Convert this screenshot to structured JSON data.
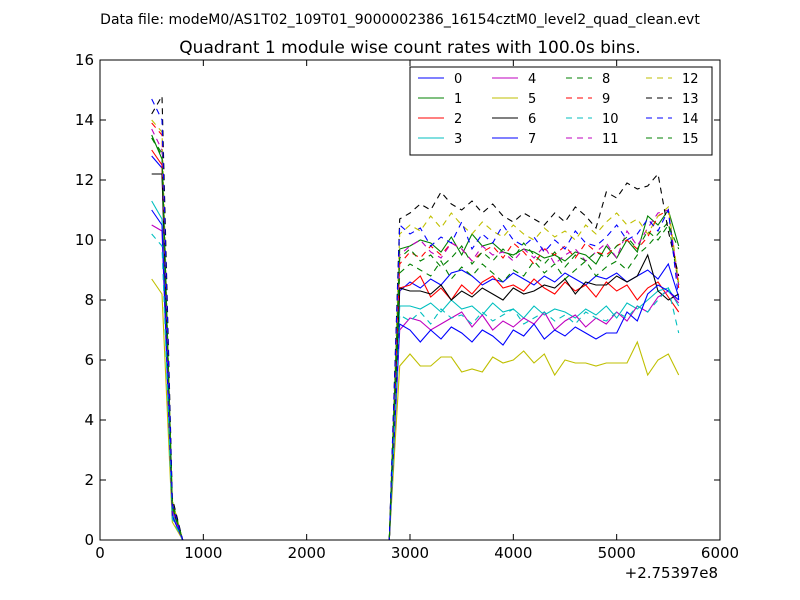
{
  "header": {
    "suptitle": "Data file: modeM0/AS1T02_109T01_9000002386_16154cztM0_level2_quad_clean.evt"
  },
  "chart_data": {
    "type": "line",
    "title": "Quadrant 1 module wise count rates with 100.0s bins.",
    "xlabel": "",
    "ylabel": "",
    "x_offset_label": "+2.75397e8",
    "xlim": [
      0,
      6000
    ],
    "ylim": [
      0,
      16
    ],
    "xticks": [
      0,
      1000,
      2000,
      3000,
      4000,
      5000,
      6000
    ],
    "yticks": [
      0,
      2,
      4,
      6,
      8,
      10,
      12,
      14,
      16
    ],
    "grid": false,
    "legend_position": "top-right",
    "legend_columns": 4,
    "gap_interval": [
      800,
      2800
    ],
    "series": [
      {
        "name": "0",
        "color": "#0000ff",
        "style": "solid",
        "head": [
          12.8,
          12.4,
          1.1,
          0
        ],
        "tail": [
          8.3,
          8.6,
          8.4,
          8.7,
          8.5,
          8.9,
          9.0,
          8.8,
          8.5,
          8.7,
          8.6,
          8.9,
          8.7,
          8.5,
          8.8,
          8.6,
          8.9,
          8.7,
          8.5,
          8.8,
          8.7,
          8.9,
          8.6,
          8.8,
          9.0,
          8.7,
          9.2,
          8.1
        ]
      },
      {
        "name": "1",
        "color": "#008000",
        "style": "solid",
        "head": [
          13.5,
          12.7,
          1.2,
          0
        ],
        "tail": [
          9.7,
          9.8,
          10.0,
          9.9,
          9.6,
          10.1,
          9.5,
          10.2,
          9.8,
          9.9,
          9.6,
          9.5,
          9.7,
          9.6,
          9.4,
          9.5,
          9.3,
          9.6,
          9.5,
          9.2,
          9.8,
          9.4,
          10.0,
          9.6,
          10.8,
          10.5,
          11.0,
          9.8
        ]
      },
      {
        "name": "2",
        "color": "#ff0000",
        "style": "solid",
        "head": [
          13.0,
          12.5,
          1.0,
          0
        ],
        "tail": [
          8.4,
          8.5,
          8.8,
          8.1,
          8.4,
          8.0,
          8.5,
          8.2,
          8.6,
          8.8,
          8.4,
          8.5,
          8.3,
          8.7,
          8.4,
          8.2,
          8.6,
          8.3,
          8.5,
          8.1,
          8.6,
          8.3,
          8.5,
          8.0,
          8.4,
          8.6,
          8.1,
          7.6
        ]
      },
      {
        "name": "3",
        "color": "#00bfbf",
        "style": "solid",
        "head": [
          11.3,
          10.7,
          0.9,
          0
        ],
        "tail": [
          7.8,
          7.8,
          7.7,
          7.9,
          7.6,
          8.0,
          7.7,
          7.8,
          7.5,
          7.9,
          7.6,
          7.7,
          7.4,
          7.8,
          7.5,
          7.7,
          7.6,
          7.4,
          7.7,
          7.5,
          7.8,
          7.4,
          7.9,
          7.7,
          8.0,
          8.3,
          8.4,
          7.8
        ]
      },
      {
        "name": "4",
        "color": "#bf00bf",
        "style": "solid",
        "head": [
          10.5,
          10.3,
          0.8,
          0
        ],
        "tail": [
          7.0,
          7.4,
          7.3,
          7.0,
          7.2,
          7.4,
          7.6,
          7.1,
          7.5,
          7.0,
          7.3,
          7.1,
          7.4,
          7.2,
          7.6,
          7.0,
          7.3,
          7.5,
          7.1,
          7.4,
          7.2,
          7.6,
          7.3,
          7.8,
          7.6,
          8.1,
          8.3,
          7.9
        ]
      },
      {
        "name": "5",
        "color": "#bfbf00",
        "style": "solid",
        "head": [
          8.7,
          8.2,
          0.6,
          0
        ],
        "tail": [
          5.8,
          6.2,
          5.8,
          5.8,
          6.1,
          6.1,
          5.6,
          5.7,
          5.6,
          6.1,
          5.9,
          6.0,
          6.3,
          5.9,
          6.2,
          5.5,
          6.0,
          5.9,
          5.9,
          5.8,
          5.9,
          5.9,
          5.9,
          6.6,
          5.5,
          6.0,
          6.2,
          5.5
        ]
      },
      {
        "name": "6",
        "color": "#000000",
        "style": "solid",
        "head": [
          12.2,
          12.2,
          1.1,
          0
        ],
        "tail": [
          8.4,
          8.3,
          8.3,
          8.2,
          8.5,
          8.0,
          8.3,
          8.1,
          8.4,
          8.2,
          8.0,
          8.4,
          8.2,
          8.3,
          8.5,
          8.4,
          8.7,
          8.2,
          8.6,
          8.5,
          8.5,
          8.8,
          8.6,
          8.8,
          9.5,
          8.3,
          8.0,
          8.2
        ]
      },
      {
        "name": "7",
        "color": "#0000ff",
        "style": "solid",
        "head": [
          11.0,
          10.5,
          0.8,
          0
        ],
        "tail": [
          7.2,
          7.0,
          6.6,
          7.0,
          6.7,
          7.1,
          6.9,
          6.6,
          7.0,
          6.8,
          6.5,
          7.0,
          6.8,
          7.2,
          6.7,
          7.0,
          6.8,
          7.1,
          6.9,
          6.7,
          6.9,
          6.9,
          7.6,
          7.3,
          8.2,
          8.5,
          8.3,
          8.0
        ]
      },
      {
        "name": "8",
        "color": "#008000",
        "style": "dashed",
        "head": [
          13.4,
          12.8,
          1.3,
          0
        ],
        "tail": [
          8.9,
          9.2,
          9.0,
          8.8,
          9.3,
          8.7,
          9.1,
          8.8,
          9.2,
          8.9,
          8.6,
          9.0,
          8.8,
          9.3,
          8.9,
          9.2,
          8.7,
          9.0,
          9.3,
          8.8,
          9.1,
          9.3,
          9.0,
          9.5,
          9.8,
          10.2,
          10.6,
          8.5
        ]
      },
      {
        "name": "9",
        "color": "#ff0000",
        "style": "dashed",
        "head": [
          13.9,
          13.5,
          1.2,
          0
        ],
        "tail": [
          9.2,
          9.6,
          9.4,
          9.8,
          9.5,
          9.9,
          9.7,
          9.3,
          9.6,
          9.8,
          9.4,
          9.9,
          9.6,
          9.2,
          9.7,
          9.5,
          9.8,
          9.4,
          9.9,
          9.6,
          9.5,
          9.8,
          10.0,
          9.7,
          10.1,
          10.8,
          11.0,
          8.4
        ]
      },
      {
        "name": "10",
        "color": "#00bfbf",
        "style": "dashed",
        "head": [
          10.2,
          9.8,
          0.7,
          0
        ],
        "tail": [
          7.5,
          7.3,
          7.6,
          7.2,
          7.7,
          7.4,
          7.5,
          7.2,
          7.6,
          7.3,
          7.5,
          7.7,
          7.2,
          7.4,
          7.6,
          7.3,
          7.5,
          7.2,
          7.6,
          7.4,
          7.3,
          7.6,
          7.4,
          7.8,
          7.6,
          8.0,
          8.4,
          6.9
        ]
      },
      {
        "name": "11",
        "color": "#bf00bf",
        "style": "dashed",
        "head": [
          13.7,
          13.0,
          1.0,
          0
        ],
        "tail": [
          9.5,
          9.8,
          10.0,
          9.6,
          9.4,
          9.9,
          9.7,
          9.3,
          9.8,
          9.5,
          9.6,
          9.3,
          9.7,
          9.4,
          9.8,
          9.2,
          9.5,
          9.7,
          9.3,
          9.6,
          9.9,
          9.4,
          10.3,
          9.8,
          10.4,
          10.9,
          11.0,
          8.5
        ]
      },
      {
        "name": "12",
        "color": "#bfbf00",
        "style": "dashed",
        "head": [
          14.0,
          13.6,
          1.3,
          0
        ],
        "tail": [
          10.2,
          10.5,
          10.3,
          10.8,
          10.4,
          10.9,
          10.5,
          10.2,
          10.6,
          10.3,
          10.1,
          10.5,
          10.2,
          10.0,
          10.4,
          10.1,
          10.3,
          10.0,
          10.5,
          10.2,
          10.6,
          10.9,
          10.5,
          10.7,
          10.2,
          10.8,
          11.1,
          8.6
        ]
      },
      {
        "name": "13",
        "color": "#000000",
        "style": "dashed",
        "head": [
          14.2,
          14.8,
          1.4,
          0
        ],
        "tail": [
          10.7,
          10.9,
          11.2,
          11.0,
          11.6,
          11.2,
          11.0,
          11.3,
          10.9,
          11.2,
          10.8,
          10.6,
          10.9,
          10.7,
          10.5,
          10.9,
          10.6,
          11.1,
          10.8,
          10.4,
          11.6,
          11.4,
          11.9,
          11.7,
          11.8,
          12.2,
          10.3,
          8.8
        ]
      },
      {
        "name": "14",
        "color": "#0000ff",
        "style": "dashed",
        "head": [
          14.7,
          14.0,
          1.2,
          0
        ],
        "tail": [
          10.5,
          10.2,
          10.4,
          9.8,
          10.1,
          9.9,
          10.6,
          9.7,
          10.2,
          9.9,
          10.5,
          10.0,
          9.8,
          10.1,
          9.6,
          10.0,
          9.7,
          10.3,
          9.9,
          9.8,
          10.1,
          10.5,
          10.0,
          10.2,
          10.7,
          10.3,
          11.0,
          8.0
        ]
      },
      {
        "name": "15",
        "color": "#008000",
        "style": "dashed",
        "head": [
          13.4,
          12.9,
          1.1,
          0
        ],
        "tail": [
          9.4,
          9.7,
          9.3,
          9.5,
          9.1,
          9.4,
          9.8,
          9.2,
          9.6,
          9.3,
          9.7,
          9.4,
          9.9,
          9.5,
          9.2,
          9.6,
          9.1,
          9.5,
          9.3,
          9.6,
          9.4,
          9.8,
          10.1,
          9.7,
          10.3,
          10.0,
          10.5,
          9.7
        ]
      }
    ]
  }
}
